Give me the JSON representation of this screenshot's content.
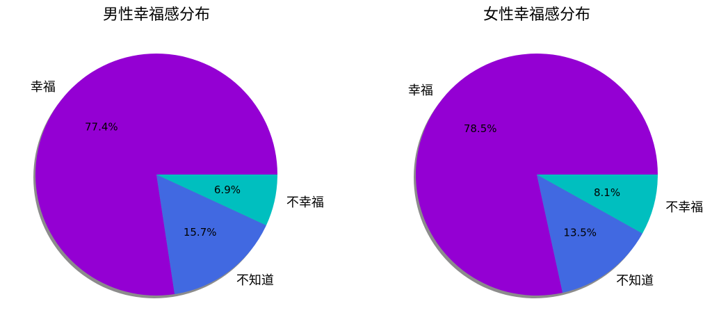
{
  "chart_data": [
    {
      "type": "pie",
      "title": "男性幸福感分布",
      "categories": [
        "幸福",
        "不知道",
        "不幸福"
      ],
      "values": [
        77.4,
        15.7,
        6.9
      ],
      "value_labels": [
        "77.4%",
        "15.7%",
        "6.9%"
      ],
      "colors": [
        "#9400d3",
        "#4169e1",
        "#00bfbf"
      ],
      "shadow": true
    },
    {
      "type": "pie",
      "title": "女性幸福感分布",
      "categories": [
        "幸福",
        "不知道",
        "不幸福"
      ],
      "values": [
        78.5,
        13.5,
        8.1
      ],
      "value_labels": [
        "78.5%",
        "13.5%",
        "8.1%"
      ],
      "colors": [
        "#9400d3",
        "#4169e1",
        "#00bfbf"
      ],
      "shadow": true
    }
  ]
}
